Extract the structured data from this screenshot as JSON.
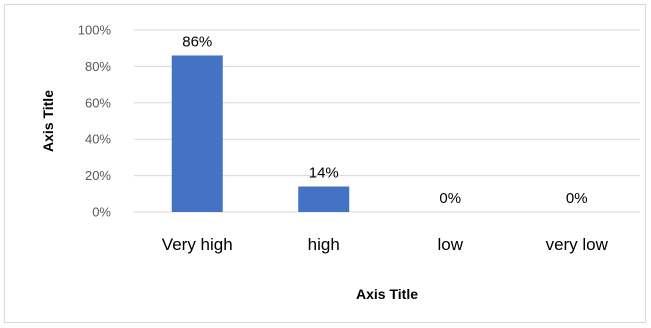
{
  "chart_data": {
    "type": "bar",
    "categories": [
      "Very high",
      "high",
      "low",
      "very low"
    ],
    "values": [
      86,
      14,
      0,
      0
    ],
    "data_labels": [
      "86%",
      "14%",
      "0%",
      "0%"
    ],
    "yticks": [
      "0%",
      "20%",
      "40%",
      "60%",
      "80%",
      "100%"
    ],
    "ylim": [
      0,
      100
    ],
    "xlabel": "Axis Title",
    "ylabel": "Axis Title",
    "grid": true,
    "legend": "none",
    "bar_color": "#4472c4",
    "grid_color": "#d9d9d9"
  }
}
